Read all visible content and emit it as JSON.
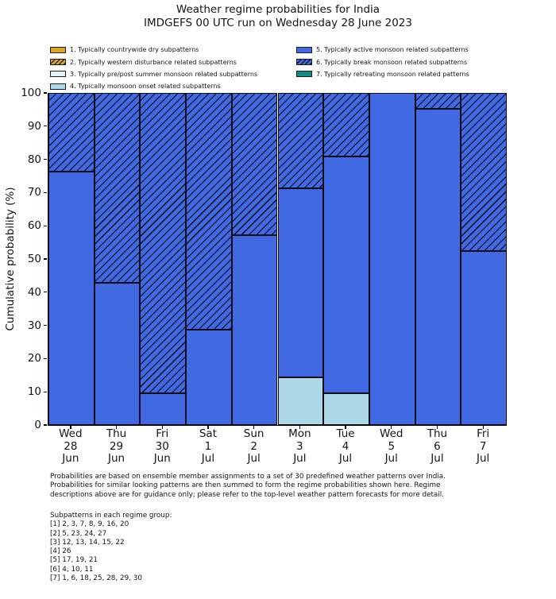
{
  "chart_data": {
    "type": "bar",
    "stacked": true,
    "title": "Weather regime probabilities for India",
    "subtitle": "IMDGEFS 00 UTC run on Wednesday 28 June 2023",
    "ylabel": "Cumulative probability (%)",
    "ylim": [
      0,
      100
    ],
    "yticks": [
      0,
      10,
      20,
      30,
      40,
      50,
      60,
      70,
      80,
      90,
      100
    ],
    "grid": false,
    "legend_position": "top, two columns above axes",
    "categories": [
      [
        "Wed",
        "28",
        "Jun"
      ],
      [
        "Thu",
        "29",
        "Jun"
      ],
      [
        "Fri",
        "30",
        "Jun"
      ],
      [
        "Sat",
        "1",
        "Jul"
      ],
      [
        "Sun",
        "2",
        "Jul"
      ],
      [
        "Mon",
        "3",
        "Jul"
      ],
      [
        "Tue",
        "4",
        "Jul"
      ],
      [
        "Wed",
        "5",
        "Jul"
      ],
      [
        "Thu",
        "6",
        "Jul"
      ],
      [
        "Fri",
        "7",
        "Jul"
      ]
    ],
    "series": [
      {
        "name": "4. Typically monsoon onset related subpatterns",
        "color": "#ADD8E6",
        "hatch": false,
        "values": [
          0,
          0,
          0,
          0,
          0,
          14.3,
          9.5,
          0,
          0,
          0
        ]
      },
      {
        "name": "5. Typically active monsoon related subpatterns",
        "color": "#4169E1",
        "hatch": false,
        "values": [
          76.2,
          42.9,
          9.5,
          28.6,
          57.1,
          57.1,
          71.4,
          100,
          95.2,
          52.4
        ]
      },
      {
        "name": "6. Typically break monsoon related subpatterns",
        "color": "#4169E1",
        "hatch": true,
        "values": [
          23.8,
          57.1,
          90.5,
          71.4,
          42.9,
          28.6,
          19.1,
          0,
          4.8,
          47.6
        ]
      }
    ]
  },
  "legend": {
    "columns": [
      [
        {
          "label": "1. Typically countrywide dry subpatterns",
          "color": "#DCA428",
          "hatch": false
        },
        {
          "label": "2. Typically western disturbance related subpatterns",
          "color": "#DCA428",
          "hatch": true
        },
        {
          "label": "3. Typically pre/post summer monsoon related subpatterns",
          "color": "#E0F4F8",
          "hatch": false
        },
        {
          "label": "4. Typically monsoon onset related subpatterns",
          "color": "#ADD8E6",
          "hatch": false
        }
      ],
      [
        {
          "label": "5. Typically active monsoon related subpatterns",
          "color": "#4169E1",
          "hatch": false
        },
        {
          "label": "6. Typically break monsoon related subpatterns",
          "color": "#4169E1",
          "hatch": true
        },
        {
          "label": "7. Typically retreating monsoon related patterns",
          "color": "#0E8C85",
          "hatch": false
        }
      ]
    ]
  },
  "footer": {
    "lines": [
      "Probabilities are based on ensemble member assignments to a set of 30 predefined weather patterns over India.",
      "Probabilities for similar looking patterns are then summed to form the regime probabilities shown here. Regime",
      "descriptions above are for guidance only; please refer to the top-level weather pattern forecasts for more detail."
    ]
  },
  "subpatterns": {
    "heading": "Subpatterns in each regime group:",
    "lines": [
      "[1] 2, 3, 7, 8, 9, 16, 20",
      "[2] 5, 23, 24, 27",
      "[3] 12, 13, 14, 15, 22",
      "[4] 26",
      "[5] 17, 19, 21",
      "[6] 4, 10, 11",
      "[7] 1, 6, 18, 25, 28, 29, 30"
    ]
  }
}
